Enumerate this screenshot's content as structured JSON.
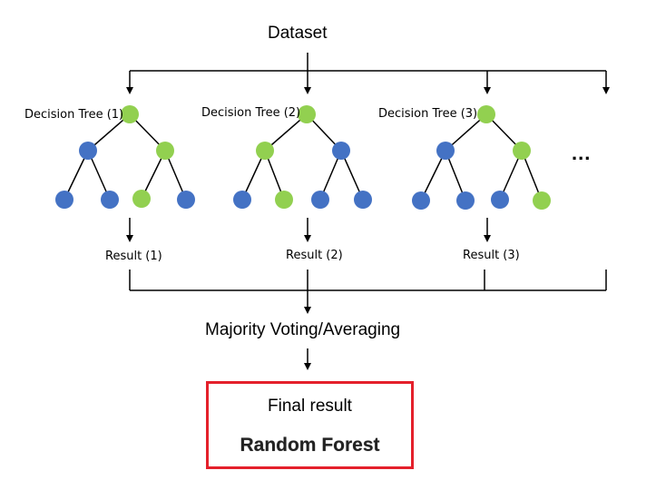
{
  "title": "Dataset",
  "trees": [
    {
      "label": "Decision Tree (1)",
      "result": "Result (1)"
    },
    {
      "label": "Decision Tree (2)",
      "result": "Result (2)"
    },
    {
      "label": "Decision Tree (3)",
      "result": "Result (3)"
    }
  ],
  "ellipsis": "...",
  "aggregation": "Majority Voting/Averaging",
  "final": {
    "label": "Final result",
    "model": "Random Forest"
  },
  "colors": {
    "selected_node": "#92d050",
    "node": "#4472c4",
    "box_border": "#e4202b",
    "line": "#000000"
  }
}
